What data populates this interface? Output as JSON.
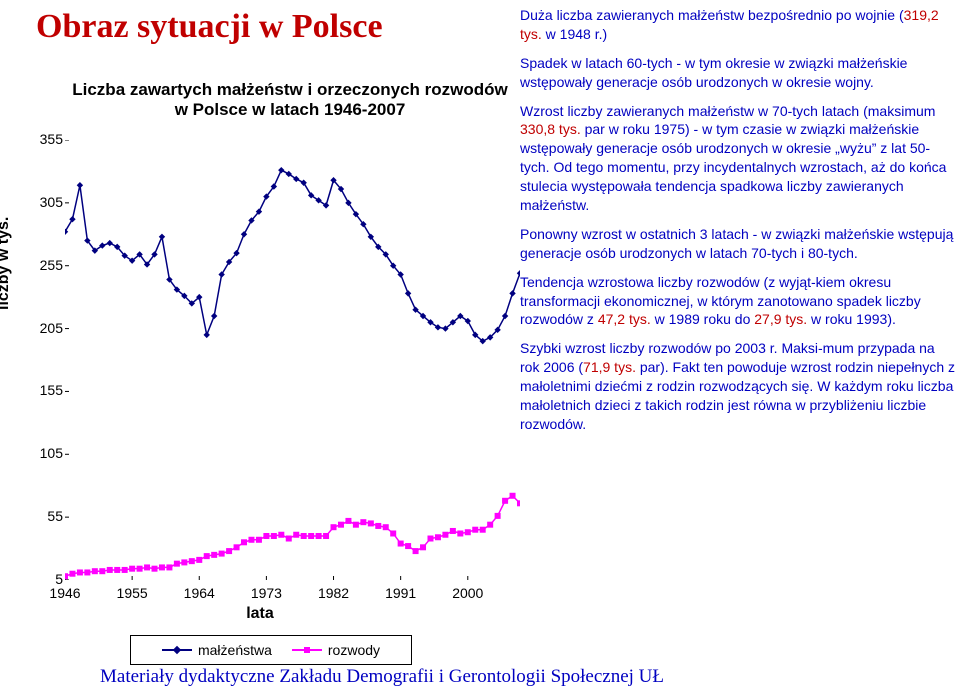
{
  "title": "Obraz sytuacji w Polsce",
  "title_fontsize": 34,
  "chart": {
    "type": "line",
    "title": "Liczba zawartych małżeństw i orzeczonych rozwodów w Polsce w latach 1946-2007",
    "title_fontsize": 17,
    "xlabel": "lata",
    "ylabel": "liczby w tys.",
    "label_fontsize": 16,
    "tick_fontsize": 14,
    "ylim": [
      5,
      355
    ],
    "ytick_step": 50,
    "yticks": [
      5,
      55,
      105,
      155,
      205,
      255,
      305,
      355
    ],
    "xlim": [
      1946,
      2007
    ],
    "xtick_step": 9,
    "xticks": [
      1946,
      1955,
      1964,
      1973,
      1982,
      1991,
      2000
    ],
    "background_color": "#ffffff",
    "grid": false,
    "series": [
      {
        "name": "małżeństwa",
        "color": "#000080",
        "marker": "diamond",
        "marker_size": 5,
        "line_width": 1.5,
        "x": [
          1946,
          1947,
          1948,
          1949,
          1950,
          1951,
          1952,
          1953,
          1954,
          1955,
          1956,
          1957,
          1958,
          1959,
          1960,
          1961,
          1962,
          1963,
          1964,
          1965,
          1966,
          1967,
          1968,
          1969,
          1970,
          1971,
          1972,
          1973,
          1974,
          1975,
          1976,
          1977,
          1978,
          1979,
          1980,
          1981,
          1982,
          1983,
          1984,
          1985,
          1986,
          1987,
          1988,
          1989,
          1990,
          1991,
          1992,
          1993,
          1994,
          1995,
          1996,
          1997,
          1998,
          1999,
          2000,
          2001,
          2002,
          2003,
          2004,
          2005,
          2006,
          2007
        ],
        "y": [
          282,
          292,
          319,
          275,
          267,
          271,
          273,
          270,
          263,
          259,
          264,
          256,
          264,
          278,
          244,
          236,
          231,
          225,
          230,
          200,
          215,
          248,
          258,
          265,
          280,
          291,
          298,
          310,
          318,
          331,
          328,
          324,
          321,
          311,
          307,
          303,
          323,
          316,
          305,
          296,
          288,
          278,
          270,
          264,
          255,
          248,
          233,
          220,
          215,
          210,
          206,
          205,
          210,
          215,
          211,
          200,
          195,
          198,
          204,
          215,
          233,
          249
        ]
      },
      {
        "name": "rozwody",
        "color": "#ff00ff",
        "marker": "square",
        "marker_size": 5,
        "line_width": 1.5,
        "x": [
          1946,
          1947,
          1948,
          1949,
          1950,
          1951,
          1952,
          1953,
          1954,
          1955,
          1956,
          1957,
          1958,
          1959,
          1960,
          1961,
          1962,
          1963,
          1964,
          1965,
          1966,
          1967,
          1968,
          1969,
          1970,
          1971,
          1972,
          1973,
          1974,
          1975,
          1976,
          1977,
          1978,
          1979,
          1980,
          1981,
          1982,
          1983,
          1984,
          1985,
          1986,
          1987,
          1988,
          1989,
          1990,
          1991,
          1992,
          1993,
          1994,
          1995,
          1996,
          1997,
          1998,
          1999,
          2000,
          2001,
          2002,
          2003,
          2004,
          2005,
          2006,
          2007
        ],
        "y": [
          8,
          10,
          11,
          11,
          12,
          12,
          13,
          13,
          13,
          14,
          14,
          15,
          14,
          15,
          15,
          18,
          19,
          20,
          21,
          24,
          25,
          26,
          28,
          31,
          35,
          37,
          37,
          40,
          40,
          41,
          38,
          41,
          40,
          40,
          40,
          40,
          47,
          49,
          52,
          49,
          51,
          50,
          48,
          47,
          42,
          34,
          32,
          28,
          31,
          38,
          39,
          41,
          44,
          42,
          43,
          45,
          45,
          49,
          56,
          68,
          72,
          66
        ]
      }
    ],
    "legend": {
      "labels": [
        "małżeństwa",
        "rozwody"
      ],
      "fontsize": 14
    }
  },
  "right_panel": {
    "fontsize": 14,
    "color": "#0000c0",
    "highlight_color": "#c00000",
    "paragraphs": [
      {
        "pre": "Duża liczba zawieranych małżeństw bezpośrednio po wojnie (",
        "hl": "319,2 tys.",
        "post": " w 1948 r.)"
      },
      {
        "pre": "Spadek w latach 60-tych - w tym okresie w związki małżeńskie wstępowały generacje osób urodzonych w okresie wojny.",
        "hl": "",
        "post": ""
      },
      {
        "pre": "Wzrost liczby zawieranych małżeństw w 70-tych latach (maksimum ",
        "hl": "330,8 tys.",
        "post": " par w roku 1975)  - w tym czasie w związki małżeńskie wstępowały generacje osób urodzonych w okresie „wyżu” z lat 50-tych. Od tego momentu, przy incydentalnych wzrostach, aż do końca stulecia występowała tendencja spadkowa liczby zawieranych małżeństw."
      },
      {
        "pre": "Ponowny wzrost w ostatnich 3 latach - w związki małżeńskie wstępują generacje osób urodzonych w latach 70-tych i 80-tych.",
        "hl": "",
        "post": ""
      },
      {
        "pre": "Tendencja wzrostowa liczby rozwodów (z wyjąt-kiem okresu transformacji  ekonomicznej, w którym zanotowano spadek liczby rozwodów z ",
        "hl": "47,2 tys.",
        "post": " w 1989 roku do ",
        "hl2": "27,9 tys.",
        "post2": "  w roku 1993)."
      },
      {
        "pre": "Szybki wzrost liczby rozwodów po 2003 r. Maksi-mum przypada na rok 2006 (",
        "hl": "71,9 tys.",
        "post": " par). Fakt ten powoduje wzrost rodzin niepełnych z małoletnimi dziećmi z rodzin rozwodzących się. W każdym roku liczba małoletnich dzieci z takich rodzin jest równa w przybliżeniu liczbie rozwodów."
      }
    ]
  },
  "footer": {
    "text": "Materiały dydaktyczne Zakładu Demografii i Gerontologii Społecznej UŁ",
    "fontsize": 19
  }
}
